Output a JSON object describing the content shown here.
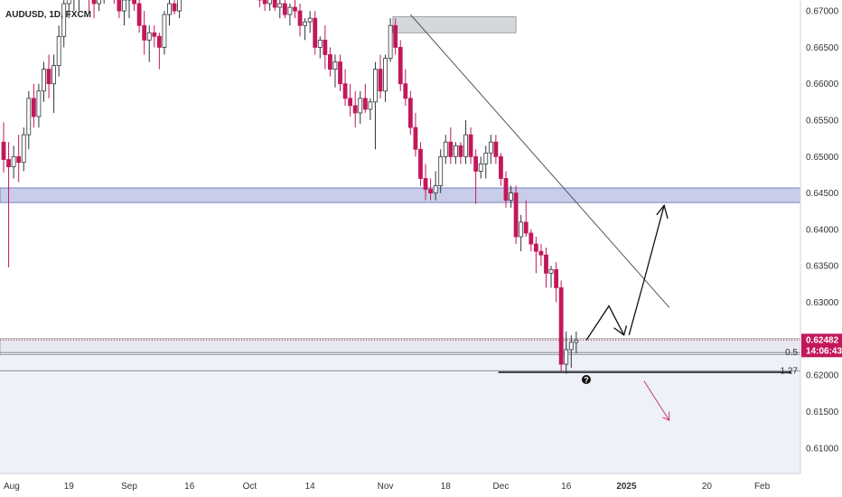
{
  "chart_data": {
    "type": "candlestick",
    "symbol_label": "AUDUSD, 1D, FXCM",
    "colors": {
      "up": "#2e3338",
      "down": "#c2185b",
      "zone_fill": "#9aa6d8",
      "rect_fill": "#d8dde0",
      "arrow_black": "#111111",
      "arrow_red": "#c2185b",
      "price_tag": "#c2185b",
      "trendline": "#555555"
    },
    "y_axis": {
      "min": 0.6065,
      "max": 0.6715,
      "ticks": [
        "0.67000",
        "0.66500",
        "0.66000",
        "0.65500",
        "0.65000",
        "0.64500",
        "0.64000",
        "0.63500",
        "0.63000",
        "0.62500",
        "0.62000",
        "0.61500",
        "0.61000"
      ],
      "tick_values": [
        0.67,
        0.665,
        0.66,
        0.655,
        0.65,
        0.645,
        0.64,
        0.635,
        0.63,
        0.625,
        0.62,
        0.615,
        0.61
      ]
    },
    "x_axis": {
      "labels": [
        "Aug",
        "19",
        "Sep",
        "16",
        "Oct",
        "14",
        "Nov",
        "18",
        "Dec",
        "16",
        "2025",
        "20",
        "Feb"
      ],
      "label_index": [
        0,
        13,
        25,
        37,
        49,
        61,
        76,
        88,
        99,
        112,
        124,
        140,
        151
      ]
    },
    "candles": [
      [
        0.652,
        0.6547,
        0.6478,
        0.6496
      ],
      [
        0.6496,
        0.652,
        0.6348,
        0.6486
      ],
      [
        0.6486,
        0.6515,
        0.647,
        0.65
      ],
      [
        0.65,
        0.653,
        0.6465,
        0.6492
      ],
      [
        0.6492,
        0.654,
        0.648,
        0.653
      ],
      [
        0.653,
        0.659,
        0.651,
        0.658
      ],
      [
        0.658,
        0.66,
        0.654,
        0.6555
      ],
      [
        0.6555,
        0.66,
        0.654,
        0.659
      ],
      [
        0.659,
        0.663,
        0.6575,
        0.662
      ],
      [
        0.662,
        0.664,
        0.658,
        0.66
      ],
      [
        0.66,
        0.664,
        0.656,
        0.6625
      ],
      [
        0.6625,
        0.668,
        0.661,
        0.6665
      ],
      [
        0.6665,
        0.672,
        0.665,
        0.671
      ],
      [
        0.671,
        0.673,
        0.669,
        0.672
      ],
      [
        0.672,
        0.674,
        0.67,
        0.673
      ],
      [
        0.673,
        0.674,
        0.67,
        0.6735
      ],
      [
        0.6735,
        0.675,
        0.6715,
        0.674
      ],
      [
        0.674,
        0.675,
        0.67,
        0.672
      ],
      [
        0.672,
        0.674,
        0.669,
        0.671
      ],
      [
        0.671,
        0.674,
        0.67,
        0.673
      ],
      [
        0.673,
        0.675,
        0.671,
        0.674
      ],
      [
        0.674,
        0.676,
        0.672,
        0.675
      ],
      [
        0.675,
        0.676,
        0.671,
        0.673
      ],
      [
        0.673,
        0.674,
        0.669,
        0.67
      ],
      [
        0.67,
        0.673,
        0.668,
        0.6715
      ],
      [
        0.6715,
        0.674,
        0.669,
        0.673
      ],
      [
        0.673,
        0.674,
        0.67,
        0.671
      ],
      [
        0.671,
        0.672,
        0.667,
        0.668
      ],
      [
        0.668,
        0.67,
        0.664,
        0.666
      ],
      [
        0.666,
        0.668,
        0.663,
        0.667
      ],
      [
        0.667,
        0.668,
        0.665,
        0.6665
      ],
      [
        0.6665,
        0.667,
        0.662,
        0.665
      ],
      [
        0.665,
        0.67,
        0.664,
        0.6695
      ],
      [
        0.6695,
        0.672,
        0.668,
        0.671
      ],
      [
        0.671,
        0.673,
        0.6695,
        0.67
      ],
      [
        0.67,
        0.674,
        0.669,
        0.673
      ],
      [
        0.673,
        0.675,
        0.6715,
        0.674
      ],
      [
        0.674,
        0.676,
        0.672,
        0.675
      ],
      [
        0.675,
        0.677,
        0.673,
        0.676
      ],
      [
        0.676,
        0.677,
        0.674,
        0.675
      ],
      [
        0.675,
        0.676,
        0.673,
        0.6755
      ],
      [
        0.6755,
        0.677,
        0.674,
        0.676
      ],
      [
        0.676,
        0.677,
        0.674,
        0.675
      ],
      [
        0.675,
        0.676,
        0.673,
        0.6745
      ],
      [
        0.6745,
        0.676,
        0.673,
        0.675
      ],
      [
        0.675,
        0.676,
        0.673,
        0.674
      ],
      [
        0.674,
        0.675,
        0.672,
        0.6735
      ],
      [
        0.6735,
        0.675,
        0.672,
        0.674
      ],
      [
        0.674,
        0.675,
        0.672,
        0.673
      ],
      [
        0.673,
        0.6745,
        0.6715,
        0.6735
      ],
      [
        0.6735,
        0.6745,
        0.6715,
        0.6725
      ],
      [
        0.6725,
        0.674,
        0.6705,
        0.6715
      ],
      [
        0.6715,
        0.673,
        0.67,
        0.671
      ],
      [
        0.671,
        0.6725,
        0.67,
        0.672
      ],
      [
        0.672,
        0.673,
        0.67,
        0.6705
      ],
      [
        0.6705,
        0.672,
        0.669,
        0.671
      ],
      [
        0.671,
        0.672,
        0.669,
        0.6695
      ],
      [
        0.6695,
        0.671,
        0.668,
        0.6705
      ],
      [
        0.6705,
        0.672,
        0.669,
        0.67
      ],
      [
        0.67,
        0.671,
        0.6665,
        0.668
      ],
      [
        0.668,
        0.669,
        0.666,
        0.6685
      ],
      [
        0.6685,
        0.67,
        0.667,
        0.669
      ],
      [
        0.669,
        0.67,
        0.664,
        0.665
      ],
      [
        0.665,
        0.6665,
        0.6635,
        0.666
      ],
      [
        0.666,
        0.668,
        0.662,
        0.664
      ],
      [
        0.664,
        0.665,
        0.661,
        0.662
      ],
      [
        0.662,
        0.664,
        0.6595,
        0.663
      ],
      [
        0.663,
        0.664,
        0.659,
        0.66
      ],
      [
        0.66,
        0.662,
        0.657,
        0.658
      ],
      [
        0.658,
        0.66,
        0.6555,
        0.657
      ],
      [
        0.657,
        0.659,
        0.654,
        0.656
      ],
      [
        0.656,
        0.659,
        0.6545,
        0.658
      ],
      [
        0.658,
        0.66,
        0.656,
        0.6565
      ],
      [
        0.6565,
        0.658,
        0.655,
        0.6575
      ],
      [
        0.6575,
        0.663,
        0.651,
        0.662
      ],
      [
        0.662,
        0.664,
        0.658,
        0.659
      ],
      [
        0.659,
        0.664,
        0.6575,
        0.6635
      ],
      [
        0.6635,
        0.669,
        0.663,
        0.668
      ],
      [
        0.668,
        0.669,
        0.664,
        0.665
      ],
      [
        0.665,
        0.666,
        0.659,
        0.66
      ],
      [
        0.66,
        0.662,
        0.657,
        0.658
      ],
      [
        0.658,
        0.659,
        0.653,
        0.654
      ],
      [
        0.654,
        0.656,
        0.65,
        0.651
      ],
      [
        0.651,
        0.652,
        0.646,
        0.647
      ],
      [
        0.647,
        0.649,
        0.644,
        0.6455
      ],
      [
        0.6455,
        0.647,
        0.644,
        0.645
      ],
      [
        0.645,
        0.648,
        0.644,
        0.646
      ],
      [
        0.646,
        0.651,
        0.645,
        0.65
      ],
      [
        0.65,
        0.653,
        0.649,
        0.652
      ],
      [
        0.652,
        0.654,
        0.649,
        0.65
      ],
      [
        0.65,
        0.652,
        0.649,
        0.6515
      ],
      [
        0.6515,
        0.652,
        0.649,
        0.65
      ],
      [
        0.65,
        0.655,
        0.649,
        0.653
      ],
      [
        0.653,
        0.654,
        0.649,
        0.65
      ],
      [
        0.65,
        0.651,
        0.6435,
        0.648
      ],
      [
        0.648,
        0.65,
        0.647,
        0.649
      ],
      [
        0.649,
        0.6515,
        0.647,
        0.6505
      ],
      [
        0.6505,
        0.653,
        0.649,
        0.652
      ],
      [
        0.652,
        0.653,
        0.649,
        0.65
      ],
      [
        0.65,
        0.6505,
        0.646,
        0.647
      ],
      [
        0.647,
        0.648,
        0.643,
        0.644
      ],
      [
        0.644,
        0.646,
        0.643,
        0.645
      ],
      [
        0.645,
        0.646,
        0.638,
        0.639
      ],
      [
        0.639,
        0.642,
        0.637,
        0.641
      ],
      [
        0.641,
        0.644,
        0.639,
        0.6395
      ],
      [
        0.6395,
        0.64,
        0.637,
        0.638
      ],
      [
        0.638,
        0.639,
        0.634,
        0.637
      ],
      [
        0.637,
        0.638,
        0.635,
        0.6365
      ],
      [
        0.6365,
        0.6375,
        0.632,
        0.634
      ],
      [
        0.634,
        0.635,
        0.632,
        0.6345
      ],
      [
        0.6345,
        0.6355,
        0.63,
        0.632
      ],
      [
        0.632,
        0.633,
        0.6205,
        0.6215
      ],
      [
        0.6215,
        0.626,
        0.6202,
        0.6235
      ],
      [
        0.6235,
        0.6255,
        0.621,
        0.6245
      ],
      [
        0.6245,
        0.626,
        0.623,
        0.6248
      ]
    ],
    "zones": [
      {
        "name": "supply-zone",
        "y_top": 0.6457,
        "y_bottom": 0.6437
      },
      {
        "name": "top-rect",
        "y_top": 0.6692,
        "y_bottom": 0.667
      },
      {
        "name": "lower-rect",
        "y_top": 0.625,
        "y_bottom": 0.6228
      }
    ],
    "levels": [
      {
        "name": "fib-0.5",
        "value": 0.6231,
        "label": "0.5"
      },
      {
        "name": "fib-1.27",
        "value": 0.6206,
        "label": "1.27"
      },
      {
        "name": "black-line",
        "value": 0.6204,
        "label": ""
      }
    ],
    "current_price": {
      "value": 0.62482,
      "label": "0.62482",
      "timer": "14:06:43"
    },
    "annotation_mark": "?"
  }
}
